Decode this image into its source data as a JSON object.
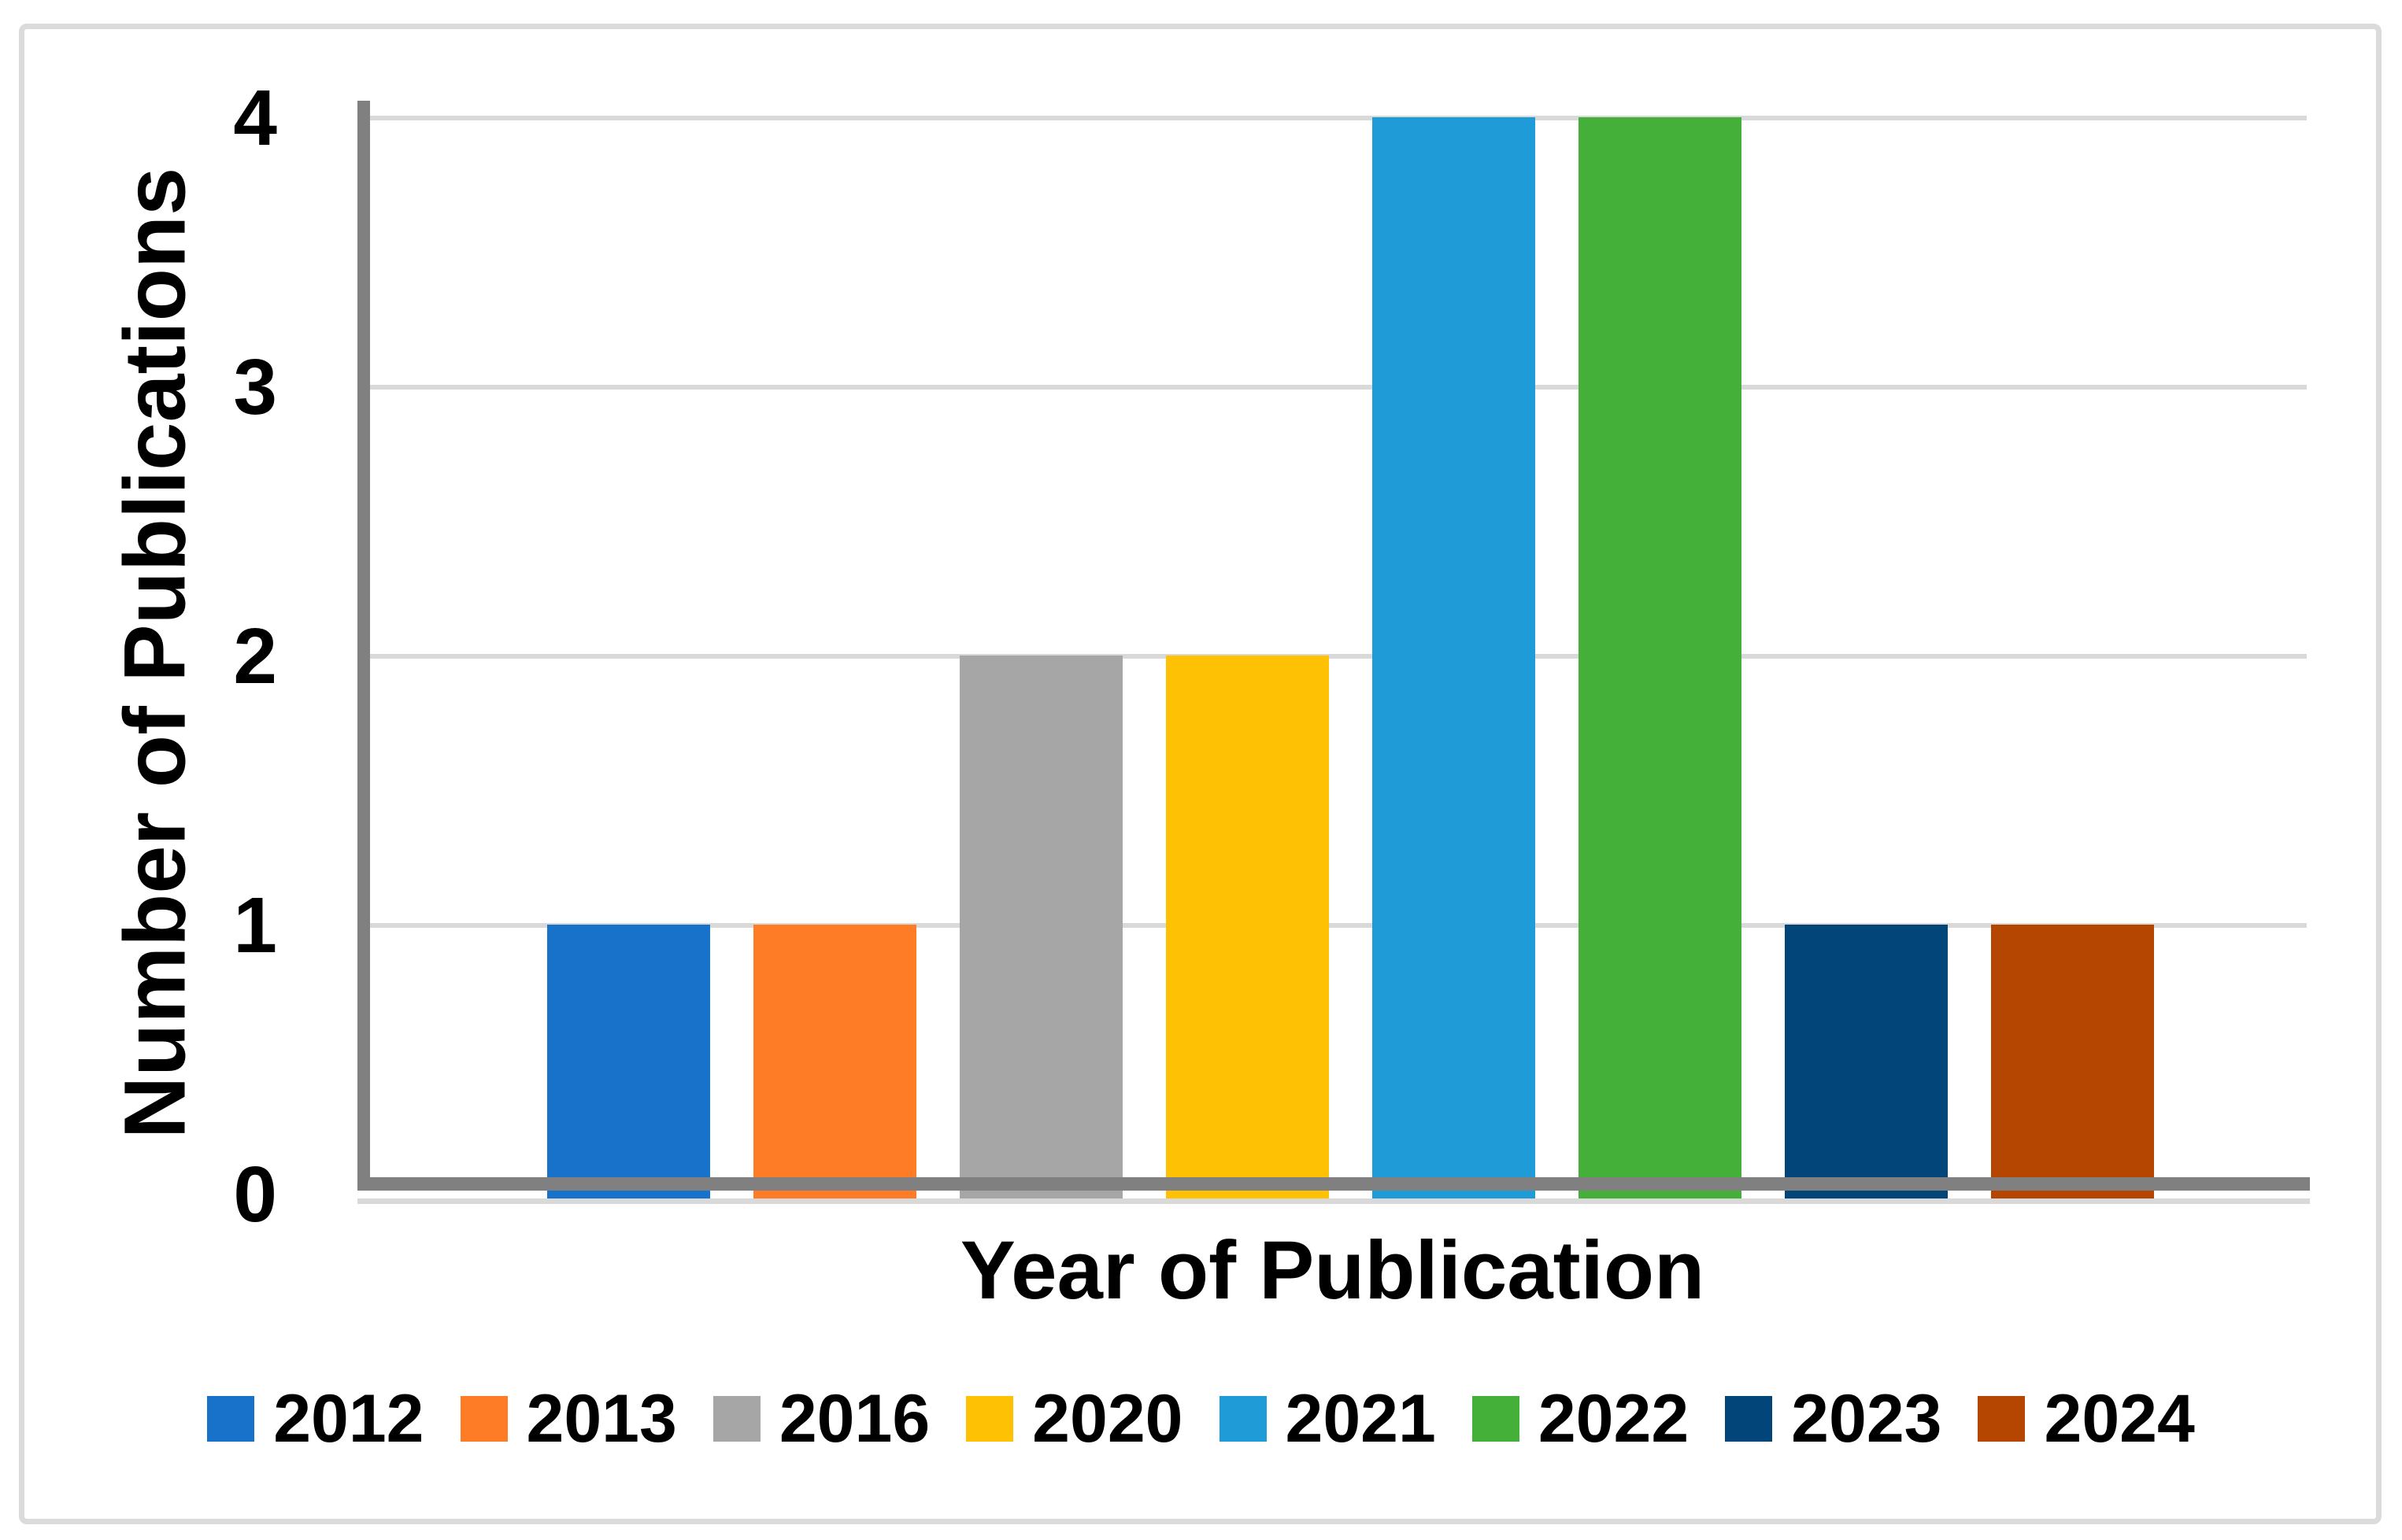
{
  "figure": {
    "background_color": "#FFFFFF",
    "frame_color": "#DBDBDB"
  },
  "chart_data": {
    "type": "bar",
    "title": "",
    "xlabel": "Year of Publication",
    "ylabel": "Number of Publications",
    "categories": [
      "2012",
      "2013",
      "2016",
      "2020",
      "2021",
      "2022",
      "2023",
      "2024"
    ],
    "values": [
      1,
      1,
      2,
      2,
      4,
      4,
      1,
      1
    ],
    "colors": [
      "#1972C9",
      "#FD7C25",
      "#A6A6A6",
      "#FFC103",
      "#1F9CD8",
      "#44B03A",
      "#024579",
      "#B44602"
    ],
    "y_ticks": [
      "0",
      "1",
      "2",
      "3",
      "4"
    ],
    "ylim": [
      0,
      4
    ],
    "grid": "horizontal",
    "gridline_color": "#D9D9D9",
    "axis_line_color": "#808080",
    "legend_position": "bottom"
  }
}
